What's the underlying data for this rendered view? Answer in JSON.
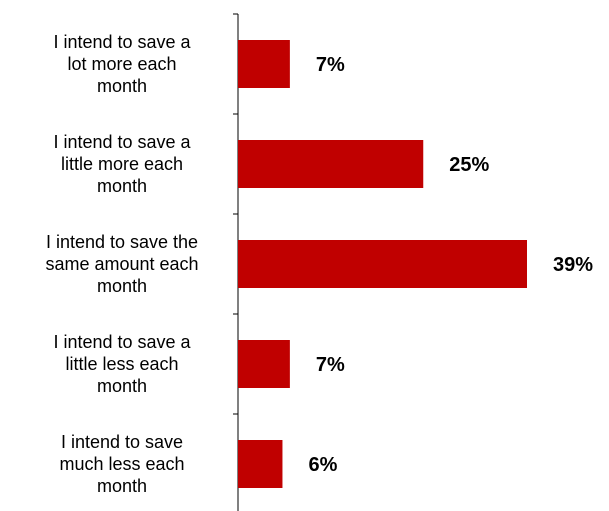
{
  "chart_data": {
    "type": "bar",
    "orientation": "horizontal",
    "categories": [
      [
        "I intend to save a",
        "lot more each",
        "month"
      ],
      [
        "I intend to save a",
        "little more each",
        "month"
      ],
      [
        "I intend to save the",
        "same amount each",
        "month"
      ],
      [
        "I intend to save a",
        "little less each",
        "month"
      ],
      [
        "I intend to save",
        "much less each",
        "month"
      ]
    ],
    "values": [
      7,
      25,
      39,
      7,
      6
    ],
    "value_labels": [
      "7%",
      "25%",
      "39%",
      "7%",
      "6%"
    ],
    "title": "",
    "xlabel": "",
    "ylabel": "",
    "xlim": [
      0,
      39
    ],
    "grid": false,
    "legend": "none",
    "bar_color": "#C00000"
  }
}
